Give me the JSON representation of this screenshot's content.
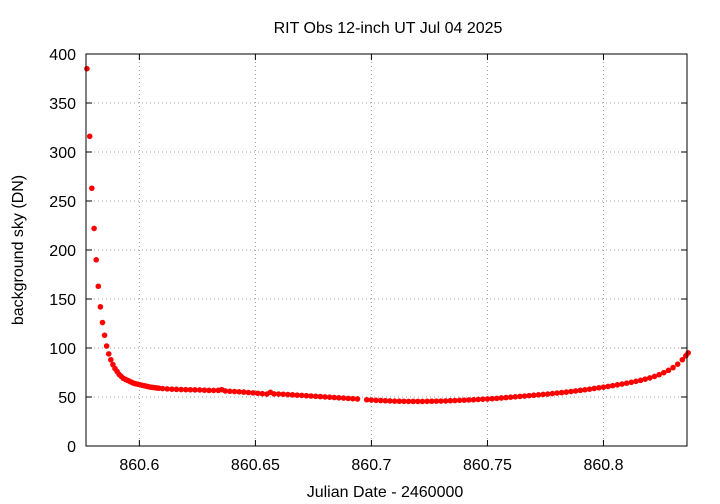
{
  "chart_data": {
    "type": "scatter",
    "title": "RIT Obs 12-inch UT Jul 04 2025",
    "xlabel": "Julian Date - 2460000",
    "ylabel": "background sky (DN)",
    "xlim": [
      860.577,
      860.836
    ],
    "ylim": [
      0,
      400
    ],
    "grid": true,
    "legend": "none",
    "marker_color": "#ff0000",
    "x_ticks": [
      {
        "value": 860.6,
        "label": "860.6"
      },
      {
        "value": 860.65,
        "label": "860.65"
      },
      {
        "value": 860.7,
        "label": "860.7"
      },
      {
        "value": 860.75,
        "label": "860.75"
      },
      {
        "value": 860.8,
        "label": "860.8"
      }
    ],
    "y_ticks": [
      {
        "value": 0,
        "label": "0"
      },
      {
        "value": 50,
        "label": "50"
      },
      {
        "value": 100,
        "label": "100"
      },
      {
        "value": 150,
        "label": "150"
      },
      {
        "value": 200,
        "label": "200"
      },
      {
        "value": 250,
        "label": "250"
      },
      {
        "value": 300,
        "label": "300"
      },
      {
        "value": 350,
        "label": "350"
      },
      {
        "value": 400,
        "label": "400"
      }
    ],
    "series": [
      {
        "points": [
          [
            860.5774,
            385
          ],
          [
            860.5786,
            316
          ],
          [
            860.5795,
            263
          ],
          [
            860.5805,
            222
          ],
          [
            860.5814,
            190
          ],
          [
            860.5823,
            163
          ],
          [
            860.5832,
            142
          ],
          [
            860.5841,
            126
          ],
          [
            860.585,
            113
          ],
          [
            860.5859,
            102
          ],
          [
            860.5868,
            94
          ],
          [
            860.5877,
            88
          ],
          [
            860.5886,
            83
          ],
          [
            860.5895,
            79
          ],
          [
            860.5904,
            76
          ],
          [
            860.5913,
            73
          ],
          [
            860.5922,
            71
          ],
          [
            860.5931,
            69
          ],
          [
            860.594,
            68
          ],
          [
            860.5949,
            67
          ],
          [
            860.5958,
            66
          ],
          [
            860.5967,
            65
          ],
          [
            860.5976,
            64
          ],
          [
            860.5985,
            63.5
          ],
          [
            860.5994,
            63
          ],
          [
            860.6003,
            62.5
          ],
          [
            860.6012,
            62
          ],
          [
            860.6021,
            61.5
          ],
          [
            860.603,
            61
          ],
          [
            860.6039,
            60.5
          ],
          [
            860.6048,
            60
          ],
          [
            860.6057,
            59.8
          ],
          [
            860.6066,
            59.5
          ],
          [
            860.6075,
            59.2
          ],
          [
            860.6084,
            59
          ],
          [
            860.61,
            58.6
          ],
          [
            860.612,
            58.3
          ],
          [
            860.614,
            58
          ],
          [
            860.616,
            57.8
          ],
          [
            860.618,
            57.6
          ],
          [
            860.62,
            57.5
          ],
          [
            860.622,
            57.4
          ],
          [
            860.624,
            57.3
          ],
          [
            860.626,
            57.2
          ],
          [
            860.628,
            57
          ],
          [
            860.63,
            56.8
          ],
          [
            860.632,
            56.7
          ],
          [
            860.634,
            56.8
          ],
          [
            860.6355,
            57.5
          ],
          [
            860.637,
            56.2
          ],
          [
            860.639,
            55.8
          ],
          [
            860.641,
            55.6
          ],
          [
            860.643,
            55.3
          ],
          [
            860.645,
            55
          ],
          [
            860.647,
            54.6
          ],
          [
            860.649,
            54.2
          ],
          [
            860.651,
            53.8
          ],
          [
            860.653,
            53.4
          ],
          [
            860.655,
            53
          ],
          [
            860.6565,
            54.8
          ],
          [
            860.658,
            53.2
          ],
          [
            860.66,
            53
          ],
          [
            860.662,
            52.8
          ],
          [
            860.664,
            52.5
          ],
          [
            860.666,
            52.2
          ],
          [
            860.668,
            51.9
          ],
          [
            860.67,
            51.6
          ],
          [
            860.672,
            51.3
          ],
          [
            860.674,
            51
          ],
          [
            860.676,
            50.7
          ],
          [
            860.678,
            50.4
          ],
          [
            860.68,
            50.1
          ],
          [
            860.682,
            49.8
          ],
          [
            860.684,
            49.5
          ],
          [
            860.686,
            49.2
          ],
          [
            860.688,
            48.9
          ],
          [
            860.69,
            48.6
          ],
          [
            860.692,
            48.3
          ],
          [
            860.694,
            48
          ],
          [
            860.698,
            47.2
          ],
          [
            860.7,
            46.9
          ],
          [
            860.702,
            46.6
          ],
          [
            860.704,
            46.4
          ],
          [
            860.706,
            46.2
          ],
          [
            860.708,
            46
          ],
          [
            860.71,
            45.8
          ],
          [
            860.712,
            45.7
          ],
          [
            860.714,
            45.6
          ],
          [
            860.716,
            45.5
          ],
          [
            860.718,
            45.5
          ],
          [
            860.72,
            45.5
          ],
          [
            860.722,
            45.5
          ],
          [
            860.724,
            45.6
          ],
          [
            860.726,
            45.7
          ],
          [
            860.728,
            45.8
          ],
          [
            860.73,
            45.9
          ],
          [
            860.732,
            46
          ],
          [
            860.734,
            46.2
          ],
          [
            860.736,
            46.4
          ],
          [
            860.738,
            46.6
          ],
          [
            860.74,
            46.8
          ],
          [
            860.742,
            47
          ],
          [
            860.744,
            47.2
          ],
          [
            860.746,
            47.5
          ],
          [
            860.748,
            47.8
          ],
          [
            860.75,
            48
          ],
          [
            860.752,
            48.3
          ],
          [
            860.754,
            48.6
          ],
          [
            860.756,
            49
          ],
          [
            860.758,
            49.4
          ],
          [
            860.76,
            49.8
          ],
          [
            860.762,
            50.2
          ],
          [
            860.764,
            50.6
          ],
          [
            860.766,
            51
          ],
          [
            860.768,
            51.4
          ],
          [
            860.77,
            51.8
          ],
          [
            860.772,
            52.2
          ],
          [
            860.774,
            52.6
          ],
          [
            860.776,
            53
          ],
          [
            860.778,
            53.5
          ],
          [
            860.78,
            54
          ],
          [
            860.782,
            54.5
          ],
          [
            860.784,
            55
          ],
          [
            860.786,
            55.6
          ],
          [
            860.788,
            56.2
          ],
          [
            860.79,
            56.8
          ],
          [
            860.792,
            57.4
          ],
          [
            860.794,
            58
          ],
          [
            860.796,
            58.7
          ],
          [
            860.798,
            59.4
          ],
          [
            860.8,
            60
          ],
          [
            860.802,
            60.8
          ],
          [
            860.804,
            61.6
          ],
          [
            860.806,
            62.4
          ],
          [
            860.808,
            63.2
          ],
          [
            860.81,
            64.1
          ],
          [
            860.812,
            65
          ],
          [
            860.814,
            66
          ],
          [
            860.816,
            67
          ],
          [
            860.818,
            68.2
          ],
          [
            860.82,
            69.5
          ],
          [
            860.822,
            71
          ],
          [
            860.824,
            72.8
          ],
          [
            860.826,
            74.8
          ],
          [
            860.828,
            77.2
          ],
          [
            860.83,
            80
          ],
          [
            860.832,
            83.5
          ],
          [
            860.834,
            88
          ],
          [
            860.8355,
            92
          ],
          [
            860.8365,
            95
          ]
        ]
      }
    ]
  }
}
